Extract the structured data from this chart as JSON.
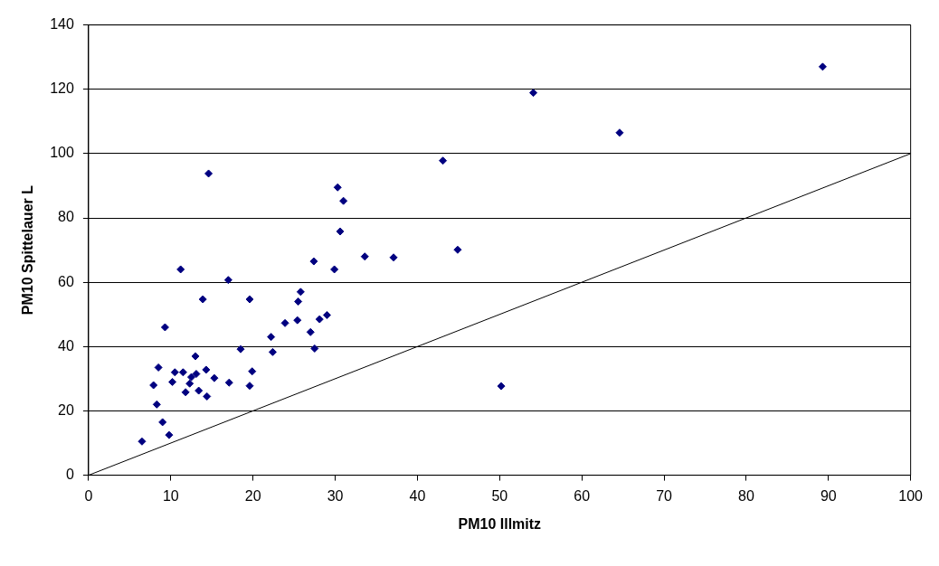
{
  "chart_data": {
    "type": "scatter",
    "xlabel": "PM10 Illmitz",
    "ylabel": "PM10 Spittelauer L",
    "xlim": [
      0,
      100
    ],
    "ylim": [
      0,
      140
    ],
    "xticks": [
      0,
      10,
      20,
      30,
      40,
      50,
      60,
      70,
      80,
      90,
      100
    ],
    "yticks": [
      0,
      20,
      40,
      60,
      80,
      100,
      120,
      140
    ],
    "grid": "y",
    "legend": false,
    "marker": "diamond",
    "series": [
      {
        "color": "#000080",
        "x": [
          6.5,
          7.9,
          8.3,
          8.5,
          9,
          9.3,
          9.8,
          10.2,
          10.5,
          11.2,
          11.5,
          11.8,
          12.3,
          12.5,
          13,
          13.1,
          13.4,
          13.9,
          14.3,
          14.4,
          14.6,
          15.3,
          17,
          17.1,
          18.5,
          19.6,
          19.6,
          19.9,
          22.2,
          22.4,
          23.9,
          25.4,
          25.5,
          25.8,
          27,
          27.4,
          27.5,
          28.1,
          29,
          29.9,
          30.3,
          30.6,
          31,
          33.6,
          37.1,
          43.1,
          44.9,
          50.2,
          54.1,
          64.6,
          89.3
        ],
        "values": [
          10.5,
          28,
          22,
          33.5,
          16.5,
          46,
          12.5,
          29,
          32,
          64,
          32,
          25.8,
          28.5,
          30.5,
          37,
          31.5,
          26.3,
          54.7,
          32.8,
          24.5,
          93.8,
          30.2,
          60.7,
          28.8,
          39.2,
          54.7,
          27.8,
          32.3,
          43,
          38.3,
          47.3,
          48.2,
          54,
          57,
          44.5,
          66.5,
          39.4,
          48.5,
          49.8,
          64,
          89.5,
          75.8,
          85.3,
          68,
          67.7,
          97.8,
          70.1,
          27.7,
          118.9,
          106.5,
          127
        ]
      },
      {
        "type": "line",
        "color": "#000000",
        "marker": "none",
        "x": [
          0,
          100
        ],
        "values": [
          0,
          100
        ]
      }
    ]
  }
}
